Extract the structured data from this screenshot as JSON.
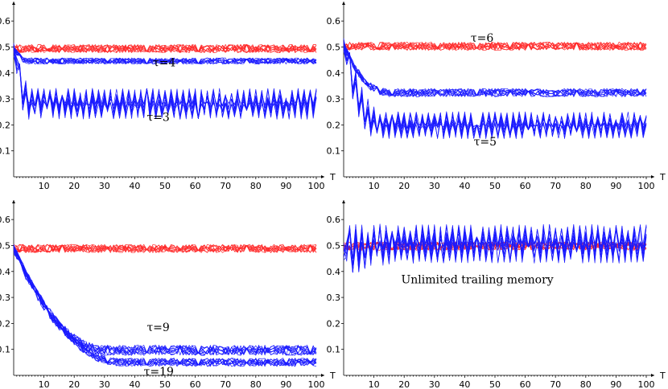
{
  "colors": {
    "control": "#ff2a2a",
    "memory": "#1a1aff",
    "axis": "#000000"
  },
  "chart_data": [
    {
      "type": "line",
      "xlabel": "T",
      "ylabel": "",
      "xlim": [
        0,
        100
      ],
      "ylim": [
        0,
        0.65
      ],
      "xticks": [
        "10",
        "20",
        "30",
        "40",
        "50",
        "60",
        "70",
        "80",
        "90",
        "100"
      ],
      "yticks": [
        "0.1",
        "0.2",
        "0.3",
        "0.4",
        "0.5",
        "0.6"
      ],
      "annotations": [
        {
          "text": "τ=4",
          "x": 46,
          "y": 0.425
        },
        {
          "text": "τ=3",
          "x": 44,
          "y": 0.215
        }
      ],
      "series": [
        {
          "color": "control",
          "runs": 10,
          "start": 0.5,
          "level": 0.5,
          "transient_end": 1,
          "amp": 0.02,
          "period": 0
        },
        {
          "color": "memory",
          "runs": 10,
          "start": 0.5,
          "level": 0.45,
          "transient_end": 5,
          "amp": 0.015,
          "period": 0
        },
        {
          "color": "memory",
          "runs": 10,
          "start": 0.5,
          "level": 0.29,
          "transient_end": 6,
          "amp": 0.04,
          "period": 2
        }
      ]
    },
    {
      "type": "line",
      "xlabel": "T",
      "ylabel": "",
      "xlim": [
        0,
        100
      ],
      "ylim": [
        0,
        0.65
      ],
      "xticks": [
        "10",
        "20",
        "30",
        "40",
        "50",
        "60",
        "70",
        "80",
        "90",
        "100"
      ],
      "yticks": [
        "0.1",
        "0.2",
        "0.3",
        "0.4",
        "0.5",
        "0.6"
      ],
      "annotations": [
        {
          "text": "τ=6",
          "x": 42,
          "y": 0.52
        },
        {
          "text": "τ=5",
          "x": 43,
          "y": 0.12
        }
      ],
      "series": [
        {
          "color": "control",
          "runs": 10,
          "start": 0.5,
          "level": 0.5,
          "transient_end": 1,
          "amp": 0.02,
          "period": 0
        },
        {
          "color": "memory",
          "runs": 10,
          "start": 0.5,
          "level": 0.32,
          "transient_end": 14,
          "amp": 0.02,
          "period": 0
        },
        {
          "color": "memory",
          "runs": 10,
          "start": 0.5,
          "level": 0.19,
          "transient_end": 12,
          "amp": 0.035,
          "period": 2
        }
      ]
    },
    {
      "type": "line",
      "xlabel": "T",
      "ylabel": "",
      "xlim": [
        0,
        100
      ],
      "ylim": [
        0,
        0.65
      ],
      "xticks": [
        "10",
        "20",
        "30",
        "40",
        "50",
        "60",
        "70",
        "80",
        "90",
        "100"
      ],
      "yticks": [
        "0.1",
        "0.2",
        "0.3",
        "0.4",
        "0.5",
        "0.6"
      ],
      "annotations": [
        {
          "text": "τ=9",
          "x": 44,
          "y": 0.17
        },
        {
          "text": "τ=19",
          "x": 43,
          "y": 0.0
        }
      ],
      "series": [
        {
          "color": "control",
          "runs": 10,
          "start": 0.5,
          "level": 0.5,
          "transient_end": 1,
          "amp": 0.02,
          "period": 0
        },
        {
          "color": "memory",
          "runs": 10,
          "start": 0.5,
          "level": 0.11,
          "transient_end": 30,
          "amp": 0.025,
          "period": 0
        },
        {
          "color": "memory",
          "runs": 10,
          "start": 0.5,
          "level": 0.06,
          "transient_end": 35,
          "amp": 0.02,
          "period": 0
        }
      ]
    },
    {
      "type": "line",
      "xlabel": "T",
      "ylabel": "",
      "xlim": [
        0,
        100
      ],
      "ylim": [
        0,
        0.65
      ],
      "xticks": [
        "10",
        "20",
        "30",
        "40",
        "50",
        "60",
        "70",
        "80",
        "90",
        "100"
      ],
      "yticks": [
        "0.1",
        "0.2",
        "0.3",
        "0.4",
        "0.5",
        "0.6"
      ],
      "annotations": [
        {
          "text": "Unlimited trailing memory",
          "x": 19,
          "y": 0.355
        }
      ],
      "series": [
        {
          "color": "control",
          "runs": 10,
          "start": 0.5,
          "level": 0.5,
          "transient_end": 1,
          "amp": 0.02,
          "period": 0
        },
        {
          "color": "memory",
          "runs": 10,
          "start": 0.48,
          "level": 0.51,
          "transient_end": 20,
          "amp": 0.05,
          "period": 2
        }
      ]
    }
  ]
}
